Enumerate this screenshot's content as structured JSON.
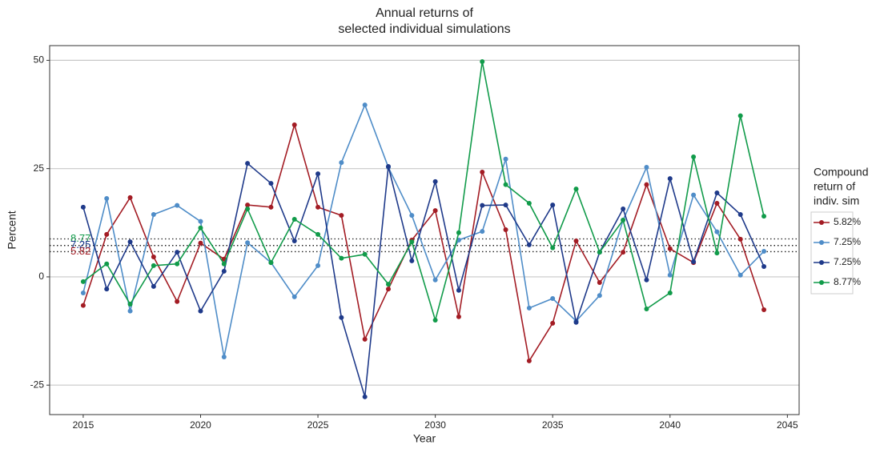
{
  "chart_data": {
    "type": "line",
    "title": [
      "Annual returns of",
      "selected individual simulations"
    ],
    "x_label": "Year",
    "y_label": "Percent",
    "legend_title": [
      "Compound",
      "return of",
      "indiv. sim"
    ],
    "x": [
      2015,
      2016,
      2017,
      2018,
      2019,
      2020,
      2021,
      2022,
      2023,
      2024,
      2025,
      2026,
      2027,
      2028,
      2029,
      2030,
      2031,
      2032,
      2033,
      2034,
      2035,
      2036,
      2037,
      2038,
      2039,
      2040,
      2041,
      2042,
      2043,
      2044
    ],
    "series": [
      {
        "name": "5.82%",
        "color": "#a31c24",
        "values": [
          -6.6,
          9.8,
          18.3,
          4.6,
          -5.7,
          7.8,
          4.1,
          16.6,
          16.1,
          35.1,
          16.1,
          14.2,
          -14.4,
          -2.8,
          8.5,
          15.3,
          -9.2,
          24.2,
          10.9,
          -19.4,
          -10.7,
          8.3,
          -1.3,
          5.7,
          21.3,
          6.5,
          3.3,
          17.0,
          8.7,
          -7.6
        ]
      },
      {
        "name": "7.25%",
        "color": "#4f8dc8",
        "values": [
          -3.7,
          18.1,
          -7.9,
          14.4,
          16.5,
          12.8,
          -18.5,
          7.9,
          3.3,
          -4.6,
          2.6,
          26.4,
          39.7,
          25.3,
          14.2,
          -0.7,
          8.5,
          10.5,
          27.2,
          -7.2,
          -5.0,
          -10.2,
          -4.3,
          13.1,
          25.3,
          0.4,
          18.9,
          10.4,
          0.4,
          5.9
        ]
      },
      {
        "name": "7.25%",
        "color": "#1f3a8a",
        "values": [
          16.1,
          -2.8,
          8.1,
          -2.2,
          5.7,
          -7.9,
          1.3,
          26.2,
          21.6,
          8.3,
          23.8,
          -9.4,
          -27.7,
          25.5,
          3.7,
          22.0,
          -3.1,
          16.5,
          16.6,
          7.4,
          16.6,
          -10.5,
          5.7,
          15.7,
          -0.7,
          22.7,
          3.5,
          19.4,
          14.4,
          2.4
        ]
      },
      {
        "name": "8.77%",
        "color": "#119b4a",
        "values": [
          -1.1,
          3.0,
          -6.3,
          2.6,
          3.0,
          11.3,
          3.0,
          15.7,
          3.3,
          13.3,
          9.8,
          4.3,
          5.2,
          -1.7,
          8.1,
          -10.0,
          10.2,
          49.7,
          21.3,
          17.0,
          6.7,
          20.3,
          5.7,
          13.1,
          -7.4,
          -3.7,
          27.7,
          5.5,
          37.2,
          14.0
        ]
      }
    ],
    "hlines": [
      {
        "value": 8.77,
        "color": "#119b4a"
      },
      {
        "value": 7.25,
        "color": "#4f8dc8"
      },
      {
        "value": 7.25,
        "color": "#1f3a8a"
      },
      {
        "value": 5.82,
        "color": "#a31c24"
      }
    ],
    "xlim": [
      2013.57,
      2045.5
    ],
    "ylim": [
      -31.8,
      53.4
    ],
    "xticks": [
      2015,
      2020,
      2025,
      2030,
      2035,
      2040,
      2045
    ],
    "yticks": [
      -25,
      0,
      25,
      50
    ],
    "grid": true,
    "legend": "right"
  }
}
